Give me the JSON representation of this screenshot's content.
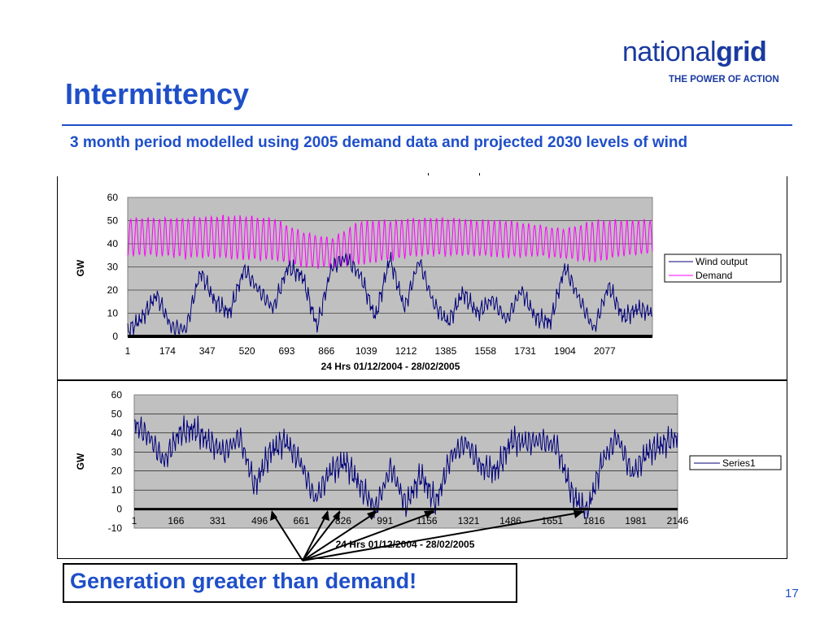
{
  "slide": {
    "title": "Intermittency",
    "subtitle": "3 month period modelled using 2005 demand data and projected 2030 levels of wind",
    "callout": "Generation greater than demand!",
    "page_number": "17"
  },
  "logo": {
    "word_regular": "national",
    "word_bold": "grid",
    "tagline": "THE POWER OF ACTION"
  },
  "colors": {
    "accent": "#1f4fc8",
    "wind": "#00007a",
    "demand": "#ff00ff",
    "plot_bg": "#c0c0c0"
  },
  "chart_data": [
    {
      "type": "line",
      "title": "",
      "xlabel": "24 Hrs 01/12/2004 - 28/02/2005",
      "ylabel": "GW",
      "xlim": [
        1,
        2160
      ],
      "ylim": [
        0,
        60
      ],
      "yticks": [
        0,
        10,
        20,
        30,
        40,
        50,
        60
      ],
      "xtick_labels": [
        "1",
        "174",
        "347",
        "520",
        "693",
        "866",
        "1039",
        "1212",
        "1385",
        "1558",
        "1731",
        "1904",
        "2077"
      ],
      "grid": true,
      "legend_position": "right",
      "series": [
        {
          "name": "Wind output",
          "color": "#00007a",
          "x": [
            1,
            60,
            120,
            180,
            240,
            300,
            360,
            420,
            480,
            540,
            600,
            660,
            720,
            780,
            840,
            900,
            960,
            1020,
            1080,
            1140,
            1200,
            1260,
            1320,
            1380,
            1440,
            1500,
            1560,
            1620,
            1680,
            1740,
            1800,
            1860,
            1920,
            1980,
            2040,
            2100,
            2160
          ],
          "y": [
            2,
            8,
            18,
            4,
            3,
            28,
            15,
            10,
            29,
            20,
            12,
            30,
            26,
            4,
            30,
            34,
            26,
            8,
            34,
            12,
            33,
            14,
            6,
            19,
            10,
            16,
            7,
            20,
            8,
            6,
            30,
            16,
            3,
            22,
            8,
            12,
            10
          ]
        },
        {
          "name": "Demand",
          "color": "#ff00ff",
          "x": [
            1,
            120,
            240,
            360,
            480,
            600,
            720,
            840,
            960,
            1080,
            1200,
            1320,
            1440,
            1560,
            1680,
            1800,
            1920,
            2040,
            2160
          ],
          "low": [
            34,
            34,
            33,
            33,
            32,
            32,
            29,
            29,
            30,
            32,
            34,
            34,
            34,
            33,
            34,
            33,
            31,
            34,
            35
          ],
          "high": [
            52,
            52,
            52,
            53,
            53,
            52,
            46,
            43,
            51,
            51,
            52,
            52,
            51,
            51,
            49,
            47,
            51,
            51,
            51
          ]
        }
      ]
    },
    {
      "type": "line",
      "title": "",
      "xlabel": "24 Hrs 01/12/2004 - 28/02/2005",
      "ylabel": "GW",
      "xlim": [
        1,
        2160
      ],
      "ylim": [
        -10,
        60
      ],
      "yticks": [
        -10,
        0,
        10,
        20,
        30,
        40,
        50,
        60
      ],
      "xtick_labels": [
        "1",
        "166",
        "331",
        "496",
        "661",
        "826",
        "991",
        "1156",
        "1321",
        "1486",
        "1651",
        "1816",
        "1981",
        "2146"
      ],
      "grid": true,
      "legend_position": "right",
      "series": [
        {
          "name": "Series1",
          "color": "#00007a",
          "x": [
            1,
            60,
            120,
            180,
            240,
            300,
            360,
            420,
            480,
            540,
            600,
            660,
            720,
            780,
            840,
            900,
            960,
            1020,
            1080,
            1140,
            1200,
            1260,
            1320,
            1380,
            1440,
            1500,
            1560,
            1620,
            1680,
            1740,
            1800,
            1860,
            1920,
            1980,
            2040,
            2100,
            2160
          ],
          "y": [
            45,
            38,
            25,
            40,
            42,
            35,
            30,
            38,
            12,
            30,
            36,
            25,
            5,
            20,
            25,
            12,
            0,
            22,
            2,
            18,
            3,
            28,
            35,
            22,
            20,
            36,
            35,
            36,
            33,
            8,
            -2,
            25,
            38,
            18,
            30,
            34,
            38
          ]
        }
      ]
    }
  ]
}
